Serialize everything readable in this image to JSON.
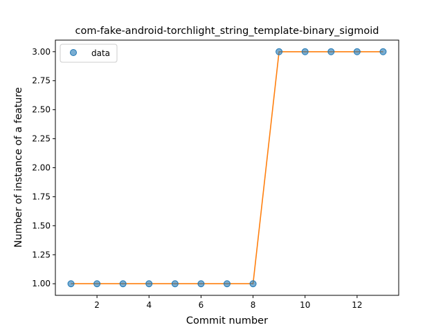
{
  "chart_data": {
    "type": "line",
    "title": "com-fake-android-torchlight_string_template-binary_sigmoid",
    "xlabel": "Commit number",
    "ylabel": "Number of instance of a feature",
    "xlim": [
      0.4,
      13.6
    ],
    "ylim": [
      0.9,
      3.1
    ],
    "x_ticks": [
      2,
      4,
      6,
      8,
      10,
      12
    ],
    "y_ticks": [
      1.0,
      1.25,
      1.5,
      1.75,
      2.0,
      2.25,
      2.5,
      2.75,
      3.0
    ],
    "y_tick_labels": [
      "1.00",
      "1.25",
      "1.50",
      "1.75",
      "2.00",
      "2.25",
      "2.50",
      "2.75",
      "3.00"
    ],
    "legend_position": "top-left",
    "grid": false,
    "series": [
      {
        "name": "data",
        "style": "markers",
        "color": "#1f77b4",
        "x": [
          1,
          2,
          3,
          4,
          5,
          6,
          7,
          8,
          9,
          10,
          11,
          12,
          13
        ],
        "y": [
          1,
          1,
          1,
          1,
          1,
          1,
          1,
          1,
          3,
          3,
          3,
          3,
          3
        ]
      },
      {
        "style": "line",
        "color": "#ff7f0e",
        "x": [
          1,
          2,
          3,
          4,
          5,
          6,
          7,
          8,
          9,
          10,
          11,
          12,
          13
        ],
        "y": [
          1,
          1,
          1,
          1,
          1,
          1,
          1,
          1,
          3,
          3,
          3,
          3,
          3
        ]
      }
    ]
  }
}
